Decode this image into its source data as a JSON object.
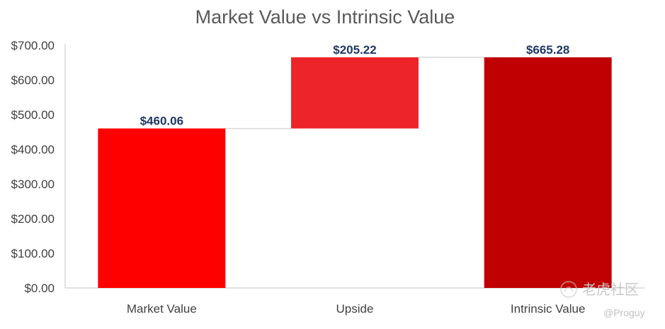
{
  "chart_data": {
    "type": "bar",
    "subtype": "waterfall",
    "title": "Market Value vs Intrinsic Value",
    "categories": [
      "Market Value",
      "Upside",
      "Intrinsic Value"
    ],
    "values": [
      460.06,
      205.22,
      665.28
    ],
    "data_labels": [
      "$460.06",
      "$205.22",
      "$665.28"
    ],
    "bar_roles": [
      "total",
      "increase",
      "total"
    ],
    "colors": [
      "#ff0000",
      "#ee2528",
      "#c00000"
    ],
    "ylim": [
      0,
      700
    ],
    "y_ticks": [
      0,
      100,
      200,
      300,
      400,
      500,
      600,
      700
    ],
    "y_tick_labels": [
      "$0.00",
      "$100.00",
      "$200.00",
      "$300.00",
      "$400.00",
      "$500.00",
      "$600.00",
      "$700.00"
    ],
    "grid": false,
    "legend": "none",
    "connector_lines": true
  },
  "watermark": {
    "brand": "老虎社区",
    "user": "@Proguy"
  }
}
